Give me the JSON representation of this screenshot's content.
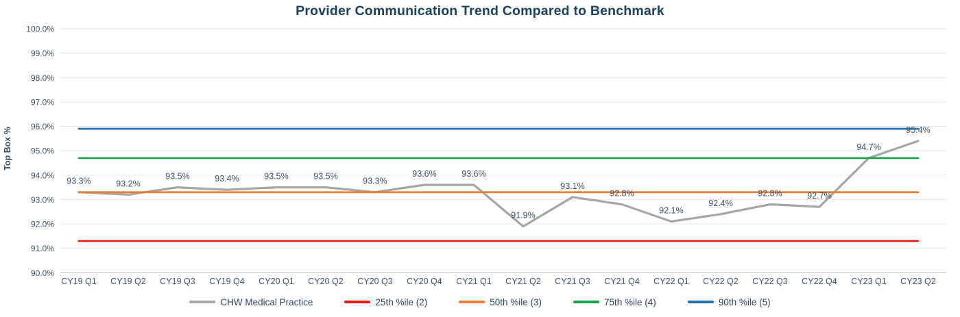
{
  "title": "Provider Communication Trend Compared to Benchmark",
  "y_axis_label": "Top Box %",
  "colors": {
    "title_text": "#20405f",
    "tick_text": "#44546a",
    "data_label_text": "#44546a",
    "legend_text": "#33455e",
    "gridline": "#e4e7eb",
    "axis_line": "#c6ccd4",
    "background": "#ffffff"
  },
  "chart_data": {
    "type": "line",
    "categories": [
      "CY19 Q1",
      "CY19 Q2",
      "CY19 Q3",
      "CY19 Q4",
      "CY20 Q1",
      "CY20 Q2",
      "CY20 Q3",
      "CY20 Q4",
      "CY21 Q1",
      "CY21 Q2",
      "CY21 Q3",
      "CY21 Q4",
      "CY22 Q1",
      "CY22 Q2",
      "CY22 Q3",
      "CY22 Q4",
      "CY23 Q1",
      "CY23 Q2"
    ],
    "series": [
      {
        "name": "CHW Medical Practice",
        "color": "#a6a6a6",
        "stroke_width": 3.25,
        "data_labels": true,
        "values": [
          93.3,
          93.2,
          93.5,
          93.4,
          93.5,
          93.5,
          93.3,
          93.6,
          93.6,
          91.9,
          93.1,
          92.8,
          92.1,
          92.4,
          92.8,
          92.7,
          94.7,
          95.4
        ]
      },
      {
        "name": "25th %ile (2)",
        "color": "#ea1c1c",
        "stroke_width": 2.75,
        "data_labels": false,
        "constant_value": 91.3
      },
      {
        "name": "50th %ile (3)",
        "color": "#ed7d31",
        "stroke_width": 2.75,
        "data_labels": false,
        "constant_value": 93.3
      },
      {
        "name": "75th %ile (4)",
        "color": "#1ca24e",
        "stroke_width": 2.75,
        "data_labels": false,
        "constant_value": 94.7
      },
      {
        "name": "90th %ile (5)",
        "color": "#2170b8",
        "stroke_width": 2.75,
        "data_labels": false,
        "constant_value": 95.9
      }
    ],
    "title": "Provider Communication Trend Compared to Benchmark",
    "xlabel": "",
    "ylabel": "Top Box %",
    "ylim": [
      90,
      100
    ],
    "y_tick_step": 1,
    "y_tick_format": "percent_1dp",
    "data_label_format": "percent_1dp",
    "grid": true,
    "legend_position": "bottom"
  }
}
